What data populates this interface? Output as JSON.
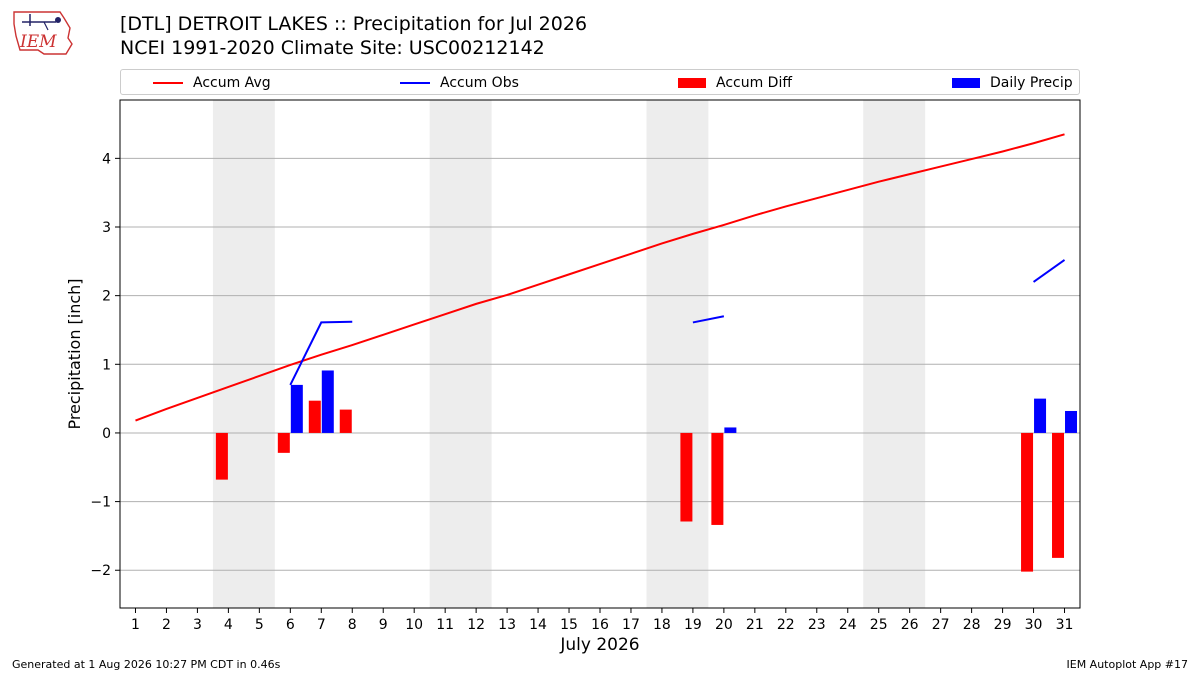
{
  "header": {
    "title_line1": "[DTL] DETROIT LAKES :: Precipitation for Jul 2026",
    "title_line2": "NCEI 1991-2020 Climate Site: USC00212142",
    "logo_text": "IEM"
  },
  "footer": {
    "generated": "Generated at 1 Aug 2026 10:27 PM CDT in 0.46s",
    "app": "IEM Autoplot App #17"
  },
  "colors": {
    "avg": "#ff0000",
    "obs": "#0000ff",
    "diff": "#ff0000",
    "daily": "#0000ff",
    "weekend": "#ededed",
    "grid": "#b0b0b0"
  },
  "chart_data": {
    "type": "bar",
    "xlabel": "July 2026",
    "ylabel": "Precipitation [inch]",
    "ylim": [
      -2.55,
      4.85
    ],
    "yticks": [
      -2,
      -1,
      0,
      1,
      2,
      3,
      4
    ],
    "ytick_labels": [
      "−2",
      "−1",
      "0",
      "1",
      "2",
      "3",
      "4"
    ],
    "xlim": [
      0.5,
      31.5
    ],
    "days": [
      1,
      2,
      3,
      4,
      5,
      6,
      7,
      8,
      9,
      10,
      11,
      12,
      13,
      14,
      15,
      16,
      17,
      18,
      19,
      20,
      21,
      22,
      23,
      24,
      25,
      26,
      27,
      28,
      29,
      30,
      31
    ],
    "weekend_spans": [
      [
        3.5,
        5.5
      ],
      [
        10.5,
        12.5
      ],
      [
        17.5,
        19.5
      ],
      [
        24.5,
        26.5
      ]
    ],
    "grid": "y",
    "legend": {
      "placement": "top",
      "entries": [
        "Accum Avg",
        "Accum Obs",
        "Accum Diff",
        "Daily Precip"
      ]
    },
    "series": [
      {
        "name": "Accum Avg",
        "kind": "line",
        "x": [
          1,
          2,
          3,
          4,
          5,
          6,
          7,
          8,
          9,
          10,
          11,
          12,
          13,
          14,
          15,
          16,
          17,
          18,
          19,
          20,
          21,
          22,
          23,
          24,
          25,
          26,
          27,
          28,
          29,
          30,
          31
        ],
        "values": [
          0.18,
          0.35,
          0.51,
          0.67,
          0.83,
          0.99,
          1.14,
          1.28,
          1.43,
          1.58,
          1.73,
          1.88,
          2.01,
          2.16,
          2.31,
          2.46,
          2.61,
          2.76,
          2.9,
          3.03,
          3.17,
          3.3,
          3.42,
          3.54,
          3.66,
          3.77,
          3.88,
          3.99,
          4.1,
          4.22,
          4.35
        ]
      },
      {
        "name": "Accum Obs",
        "kind": "line",
        "segments": [
          {
            "x": [
              6,
              7,
              8
            ],
            "values": [
              0.7,
              1.61,
              1.62
            ]
          },
          {
            "x": [
              19,
              20
            ],
            "values": [
              1.61,
              1.7
            ]
          },
          {
            "x": [
              30,
              31
            ],
            "values": [
              2.2,
              2.52
            ]
          }
        ]
      },
      {
        "name": "Accum Diff",
        "kind": "bar",
        "x": [
          4,
          6,
          7,
          8,
          19,
          20,
          30,
          31
        ],
        "values": [
          -0.68,
          -0.29,
          0.47,
          0.34,
          -1.29,
          -1.34,
          -2.02,
          -1.82
        ]
      },
      {
        "name": "Daily Precip",
        "kind": "bar",
        "x": [
          6,
          7,
          20,
          30,
          31
        ],
        "values": [
          0.7,
          0.91,
          0.08,
          0.5,
          0.32
        ]
      }
    ]
  }
}
